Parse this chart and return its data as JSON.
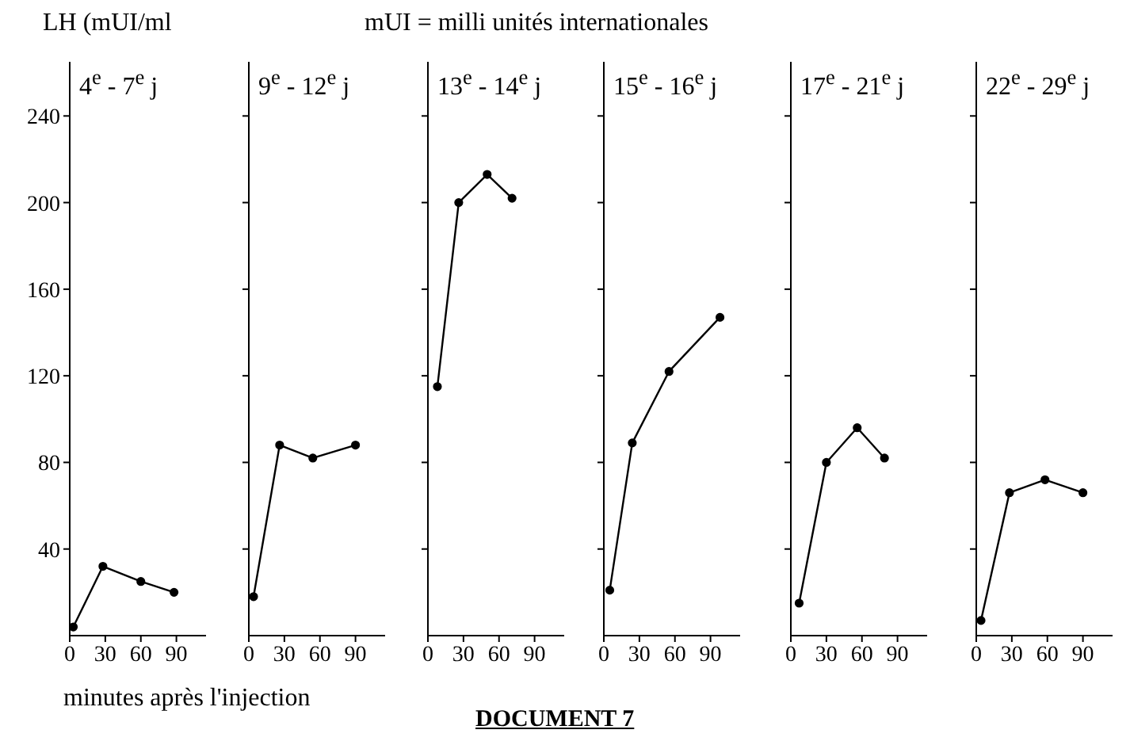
{
  "chart_data": [
    {
      "type": "line",
      "title": "4$^{e}$ - 7$^{e}$ j",
      "ylabel": "LH (mUI/ml",
      "xlabel": "minutes après l'injection",
      "annotations": [
        "mUI = milli unités internationales",
        "DOCUMENT 7"
      ],
      "x": [
        3,
        28,
        60,
        88
      ],
      "values": [
        4,
        32,
        25,
        20
      ],
      "color": "#000000",
      "xlim": [
        0,
        115
      ],
      "xticks": [
        0,
        30,
        60,
        90
      ],
      "ylim": [
        0,
        265
      ],
      "yticks": [
        40,
        80,
        120,
        160,
        200,
        240
      ],
      "marker": "circle",
      "grid": false,
      "legend": false
    },
    {
      "type": "line",
      "title": "9$^{e}$ - 12$^{e}$ j",
      "x": [
        4,
        26,
        54,
        90
      ],
      "values": [
        18,
        88,
        82,
        88
      ],
      "color": "#000000",
      "xlim": [
        0,
        115
      ],
      "xticks": [
        0,
        30,
        60,
        90
      ],
      "ylim": [
        0,
        265
      ],
      "yticks": [
        40,
        80,
        120,
        160,
        200,
        240
      ],
      "tick_labels": "x",
      "marker": "circle",
      "grid": false,
      "legend": false
    },
    {
      "type": "line",
      "title": "13$^{e}$ - 14$^{e}$ j",
      "x": [
        8,
        26,
        50,
        71
      ],
      "values": [
        115,
        200,
        213,
        202
      ],
      "color": "#000000",
      "xlim": [
        0,
        115
      ],
      "xticks": [
        0,
        30,
        60,
        90
      ],
      "ylim": [
        0,
        265
      ],
      "yticks": [
        40,
        80,
        120,
        160,
        200,
        240
      ],
      "tick_labels": "x",
      "marker": "circle",
      "grid": false,
      "legend": false
    },
    {
      "type": "line",
      "title": "15$^{e}$ - 16$^{e}$ j",
      "x": [
        5,
        24,
        55,
        98
      ],
      "values": [
        21,
        89,
        122,
        147
      ],
      "color": "#000000",
      "xlim": [
        0,
        115
      ],
      "xticks": [
        0,
        30,
        60,
        90
      ],
      "ylim": [
        0,
        265
      ],
      "yticks": [
        40,
        80,
        120,
        160,
        200,
        240
      ],
      "tick_labels": "x",
      "marker": "circle",
      "grid": false,
      "legend": false
    },
    {
      "type": "line",
      "title": "17$^{e}$ - 21$^{e}$ j",
      "x": [
        7,
        30,
        56,
        79
      ],
      "values": [
        15,
        80,
        96,
        82
      ],
      "color": "#000000",
      "xlim": [
        0,
        115
      ],
      "xticks": [
        0,
        30,
        60,
        90
      ],
      "ylim": [
        0,
        265
      ],
      "yticks": [
        40,
        80,
        120,
        160,
        200,
        240
      ],
      "tick_labels": "x",
      "marker": "circle",
      "grid": false,
      "legend": false
    },
    {
      "type": "line",
      "title": "22$^{e}$ - 29$^{e}$ j",
      "x": [
        4,
        28,
        58,
        90
      ],
      "values": [
        7,
        66,
        72,
        66
      ],
      "color": "#000000",
      "xlim": [
        0,
        115
      ],
      "xticks": [
        0,
        30,
        60,
        90
      ],
      "ylim": [
        0,
        265
      ],
      "yticks": [
        40,
        80,
        120,
        160,
        200,
        240
      ],
      "tick_labels": "x",
      "marker": "circle",
      "grid": false,
      "legend": false
    }
  ]
}
